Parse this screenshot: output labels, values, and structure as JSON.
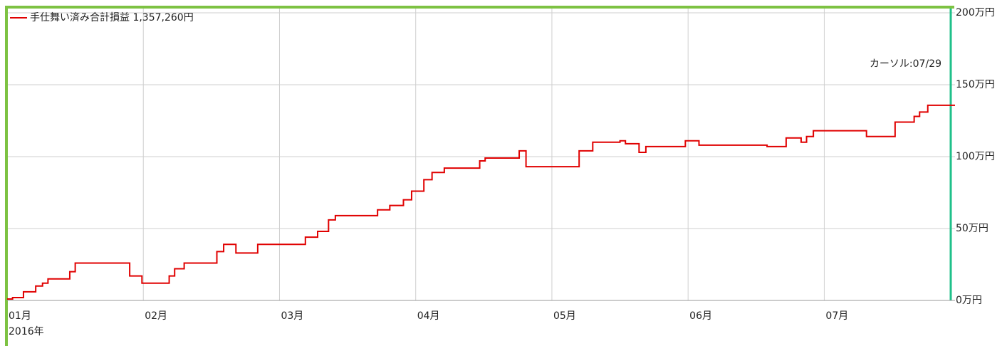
{
  "chart_data": {
    "type": "line",
    "step": "post",
    "series": [
      {
        "name": "手仕舞い済み合計損益 1,357,260円",
        "color": "#e00000",
        "x": [
          1.0,
          1.04,
          1.12,
          1.21,
          1.26,
          1.3,
          1.46,
          1.5,
          1.9,
          1.99,
          2.19,
          2.23,
          2.3,
          2.54,
          2.59,
          2.68,
          2.84,
          3.19,
          3.28,
          3.36,
          3.41,
          3.72,
          3.81,
          3.91,
          3.97,
          4.06,
          4.12,
          4.21,
          4.47,
          4.51,
          4.76,
          4.81,
          5.2,
          5.3,
          5.5,
          5.54,
          5.64,
          5.69,
          5.98,
          6.08,
          6.58,
          6.72,
          6.83,
          6.87,
          6.92,
          7.31,
          7.52,
          7.66,
          7.7,
          7.76
        ],
        "values": [
          1,
          2,
          6,
          10,
          12,
          15,
          20,
          26,
          17,
          12,
          17,
          22,
          26,
          34,
          39,
          33,
          39,
          44,
          48,
          56,
          59,
          63,
          66,
          70,
          76,
          84,
          89,
          92,
          97,
          99,
          104,
          93,
          104,
          110,
          111,
          109,
          103,
          107,
          111,
          108,
          107,
          113,
          110,
          114,
          118,
          114,
          124,
          128,
          131,
          135.7
        ]
      }
    ],
    "xlim": [
      1,
      7.96
    ],
    "xticks": [
      {
        "value": 1,
        "label": "01月"
      },
      {
        "value": 2,
        "label": "02月"
      },
      {
        "value": 3,
        "label": "03月"
      },
      {
        "value": 4,
        "label": "04月"
      },
      {
        "value": 5,
        "label": "05月"
      },
      {
        "value": 6,
        "label": "06月"
      },
      {
        "value": 7,
        "label": "07月"
      }
    ],
    "year_label": "2016年",
    "ylim": [
      0,
      200
    ],
    "yticks": [
      {
        "value": 0,
        "label": "0万円"
      },
      {
        "value": 50,
        "label": "50万円"
      },
      {
        "value": 100,
        "label": "100万円"
      },
      {
        "value": 150,
        "label": "150万円"
      },
      {
        "value": 200,
        "label": "200万円"
      }
    ],
    "grid": true,
    "cursor_label": "カーソル:07/29",
    "legend": "top-left"
  }
}
